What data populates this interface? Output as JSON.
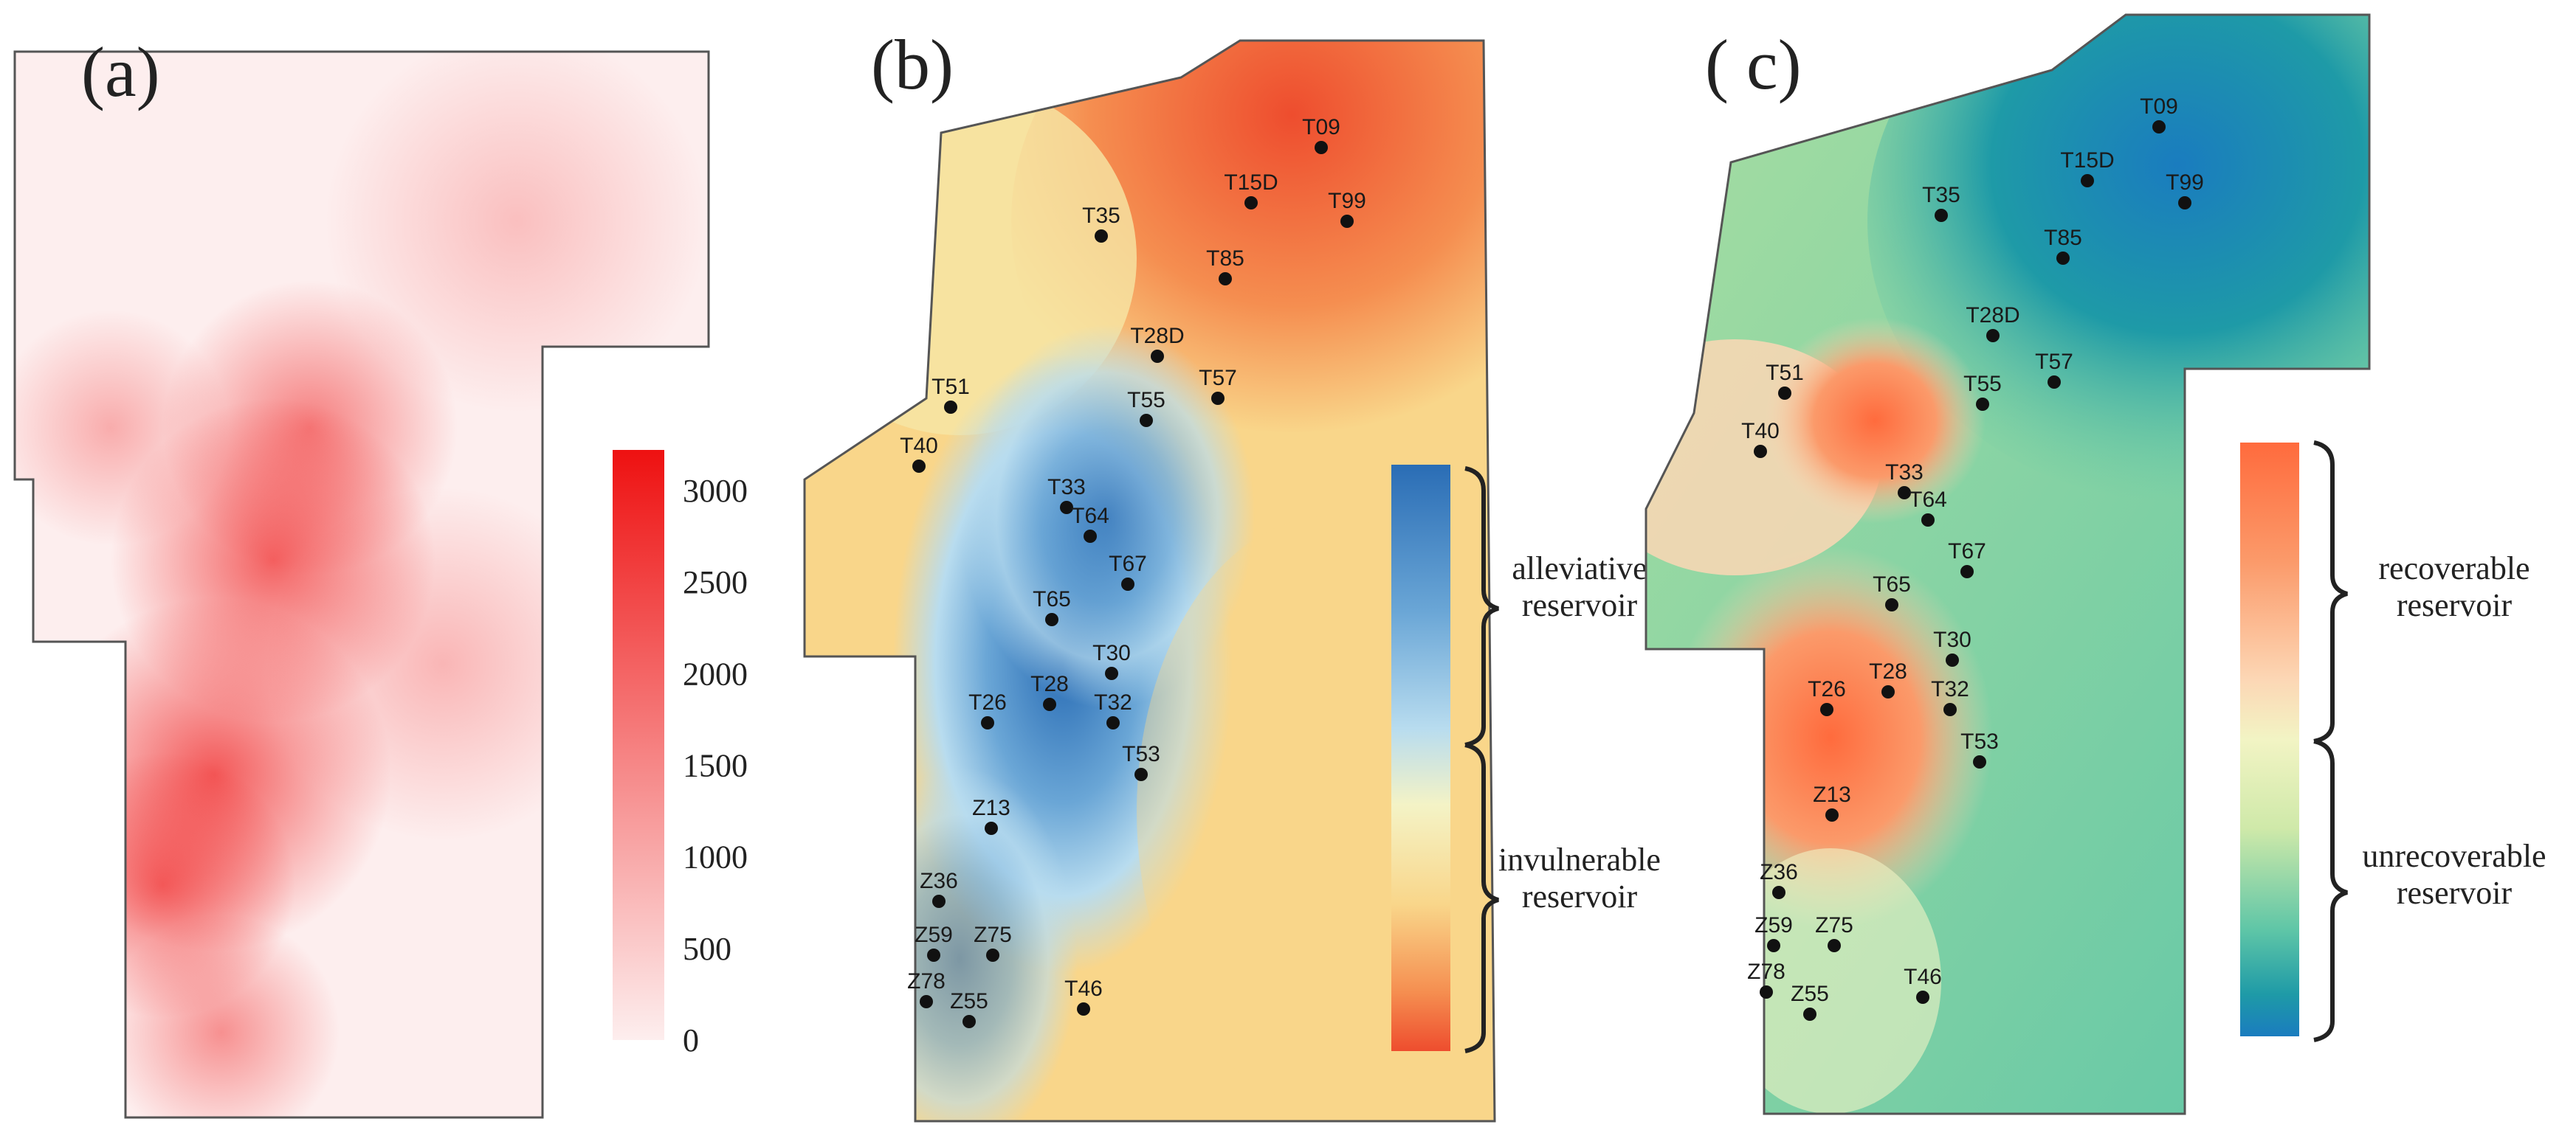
{
  "panels": {
    "a": {
      "label": "(a)"
    },
    "b": {
      "label": "(b)"
    },
    "c": {
      "label": "( c)"
    }
  },
  "legend_a": {
    "ticks": [
      "3000",
      "2500",
      "2000",
      "1500",
      "1000",
      "500",
      "0"
    ],
    "colors": {
      "low": "#fdeeee",
      "high": "#ee1111"
    }
  },
  "legend_b": {
    "upper_label_line1": "alleviative",
    "upper_label_line2": "reservoir",
    "lower_label_line1": "invulnerable",
    "lower_label_line2": "reservoir",
    "colors": [
      "#2a6db5",
      "#6aa6d6",
      "#b8dcef",
      "#f4f3c6",
      "#f9d68a",
      "#f58e50",
      "#ee4d2e"
    ]
  },
  "legend_c": {
    "upper_label_line1": "recoverable",
    "upper_label_line2": "reservoir",
    "lower_label_line1": "unrecoverable",
    "lower_label_line2": "reservoir",
    "colors": [
      "#ff6b3d",
      "#fb9a6a",
      "#fcd7b5",
      "#f2f4c4",
      "#cfe9a9",
      "#5fc6a7",
      "#1e9aa7",
      "#1a7cbf"
    ]
  },
  "wells_b": [
    "T09",
    "T15D",
    "T99",
    "T35",
    "T85",
    "T28D",
    "T51",
    "T57",
    "T55",
    "T40",
    "T33",
    "T64",
    "T67",
    "T65",
    "T30",
    "T26",
    "T28",
    "T32",
    "T53",
    "Z13",
    "Z36",
    "Z59",
    "Z75",
    "Z78",
    "Z55",
    "T46"
  ],
  "wells_c": [
    "T09",
    "T15D",
    "T99",
    "T35",
    "T85",
    "T28D",
    "T51",
    "T57",
    "T55",
    "T40",
    "T33",
    "T64",
    "T67",
    "T65",
    "T30",
    "T26",
    "T28",
    "T32",
    "T53",
    "Z13",
    "Z36",
    "Z59",
    "Z75",
    "Z78",
    "Z55",
    "T46"
  ]
}
